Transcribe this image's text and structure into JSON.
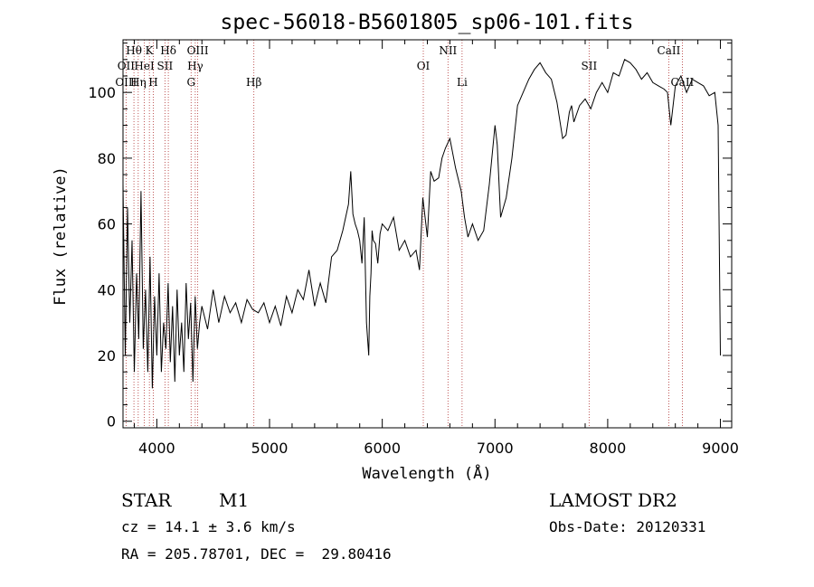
{
  "chart_data": {
    "type": "line",
    "title": "spec-56018-B5601805_sp06-101.fits",
    "xlabel": "Wavelength (Å)",
    "ylabel": "Flux (relative)",
    "xlim": [
      3700,
      9100
    ],
    "ylim": [
      -2,
      116
    ],
    "xticks": [
      4000,
      5000,
      6000,
      7000,
      8000,
      9000
    ],
    "yticks": [
      0,
      20,
      40,
      60,
      80,
      100
    ],
    "grid": false,
    "series": [
      {
        "x": [
          3700,
          3720,
          3740,
          3760,
          3780,
          3800,
          3820,
          3840,
          3860,
          3880,
          3900,
          3920,
          3940,
          3960,
          3980,
          4000,
          4020,
          4040,
          4060,
          4080,
          4100,
          4120,
          4140,
          4160,
          4180,
          4200,
          4220,
          4240,
          4260,
          4280,
          4300,
          4320,
          4340,
          4360,
          4380,
          4400,
          4450,
          4500,
          4550,
          4600,
          4650,
          4700,
          4750,
          4800,
          4850,
          4900,
          4950,
          5000,
          5050,
          5100,
          5150,
          5200,
          5250,
          5300,
          5350,
          5400,
          5450,
          5500,
          5550,
          5600,
          5650,
          5700,
          5720,
          5740,
          5760,
          5780,
          5800,
          5820,
          5840,
          5860,
          5880,
          5890,
          5900,
          5910,
          5920,
          5940,
          5960,
          5980,
          6000,
          6050,
          6100,
          6150,
          6200,
          6250,
          6300,
          6330,
          6360,
          6400,
          6430,
          6460,
          6500,
          6530,
          6560,
          6600,
          6650,
          6700,
          6730,
          6760,
          6800,
          6850,
          6900,
          6950,
          7000,
          7020,
          7050,
          7100,
          7150,
          7200,
          7250,
          7300,
          7350,
          7400,
          7450,
          7500,
          7550,
          7600,
          7630,
          7660,
          7680,
          7700,
          7720,
          7750,
          7800,
          7850,
          7900,
          7950,
          8000,
          8050,
          8100,
          8150,
          8200,
          8250,
          8300,
          8350,
          8400,
          8450,
          8500,
          8530,
          8560,
          8600,
          8650,
          8700,
          8750,
          8800,
          8850,
          8900,
          8950,
          8980,
          9000
        ],
        "y": [
          72,
          20,
          65,
          30,
          55,
          15,
          45,
          25,
          70,
          22,
          40,
          15,
          50,
          10,
          38,
          20,
          45,
          15,
          30,
          22,
          42,
          18,
          35,
          12,
          40,
          20,
          30,
          15,
          42,
          25,
          36,
          12,
          38,
          22,
          30,
          35,
          28,
          40,
          30,
          38,
          33,
          36,
          30,
          37,
          34,
          33,
          36,
          30,
          35,
          29,
          38,
          33,
          40,
          37,
          46,
          35,
          42,
          36,
          50,
          52,
          58,
          66,
          76,
          63,
          60,
          58,
          55,
          48,
          62,
          30,
          20,
          38,
          45,
          58,
          55,
          54,
          48,
          57,
          60,
          58,
          62,
          52,
          55,
          50,
          52,
          46,
          68,
          56,
          76,
          73,
          74,
          80,
          83,
          86,
          77,
          70,
          62,
          56,
          60,
          55,
          58,
          72,
          90,
          84,
          62,
          68,
          80,
          96,
          100,
          104,
          107,
          109,
          106,
          104,
          97,
          86,
          87,
          94,
          96,
          91,
          93,
          96,
          98,
          95,
          100,
          103,
          100,
          106,
          105,
          110,
          109,
          107,
          104,
          106,
          103,
          102,
          101,
          100,
          90,
          102,
          105,
          100,
          104,
          103,
          102,
          99,
          100,
          90,
          20
        ]
      }
    ],
    "spectral_lines": [
      {
        "label": "Hθ",
        "x": 3797,
        "row": 0
      },
      {
        "label": "K",
        "x": 3934,
        "row": 0
      },
      {
        "label": "Hδ",
        "x": 4102,
        "row": 0
      },
      {
        "label": "OIII",
        "x": 4363,
        "row": 0
      },
      {
        "label": "NII",
        "x": 6583,
        "row": 0
      },
      {
        "label": "CaII",
        "x": 8542,
        "row": 0
      },
      {
        "label": "OII",
        "x": 3727,
        "row": 1
      },
      {
        "label": "HeI",
        "x": 3889,
        "row": 1
      },
      {
        "label": "SII",
        "x": 4072,
        "row": 1
      },
      {
        "label": "Hγ",
        "x": 4341,
        "row": 1
      },
      {
        "label": "OI",
        "x": 6364,
        "row": 1
      },
      {
        "label": "SII",
        "x": 7835,
        "row": 1
      },
      {
        "label": "OIII",
        "x": 3727,
        "row": 2
      },
      {
        "label": "Hη",
        "x": 3835,
        "row": 2
      },
      {
        "label": "H",
        "x": 3969,
        "row": 2
      },
      {
        "label": "G",
        "x": 4304,
        "row": 2
      },
      {
        "label": "Hβ",
        "x": 4861,
        "row": 2
      },
      {
        "label": "Li",
        "x": 6708,
        "row": 2
      },
      {
        "label": "CaII",
        "x": 8662,
        "row": 2
      }
    ],
    "line_positions": [
      3727,
      3797,
      3835,
      3889,
      3934,
      3969,
      4072,
      4102,
      4304,
      4341,
      4363,
      4861,
      6364,
      6583,
      6708,
      7835,
      8542,
      8662
    ]
  },
  "info": {
    "class": "STAR",
    "subclass": "M1",
    "survey": "LAMOST DR2",
    "cz": "cz = 14.1 ± 3.6 km/s",
    "obs_date": "Obs-Date: 20120331",
    "coords": "RA = 205.78701, DEC =  29.80416"
  }
}
